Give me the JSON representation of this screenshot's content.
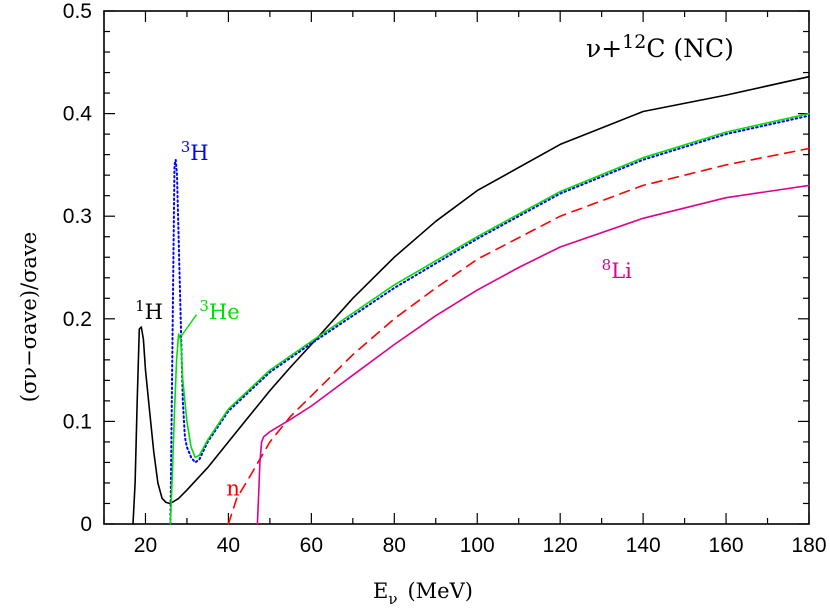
{
  "chart_data": {
    "type": "line",
    "title": "ν+¹²C (NC)",
    "title_parts": {
      "prefix": "ν+",
      "sup": "12",
      "suffix": "C (NC)"
    },
    "xlabel": {
      "main": "E",
      "sub": "ν",
      "unit": "(MeV)"
    },
    "ylabel": {
      "text": "(σν−σave)/σave"
    },
    "xlim": [
      10,
      180
    ],
    "ylim": [
      0,
      0.5
    ],
    "x_ticks": [
      20,
      40,
      60,
      80,
      100,
      120,
      140,
      160,
      180
    ],
    "y_ticks": [
      0,
      0.1,
      0.2,
      0.3,
      0.4,
      0.5
    ],
    "y_tick_labels": [
      "0",
      "0.1",
      "0.2",
      "0.3",
      "0.4",
      "0.5"
    ],
    "grid": false,
    "legend": "none",
    "series": [
      {
        "name": "¹H",
        "label_parts": {
          "sup": "1",
          "base": "H"
        },
        "color": "#000000",
        "style": "solid",
        "x": [
          17,
          17.5,
          18,
          18.5,
          19,
          19.5,
          20,
          21,
          22,
          23,
          24,
          25,
          26,
          28,
          30,
          35,
          40,
          45,
          50,
          55,
          60,
          70,
          80,
          90,
          100,
          120,
          140,
          160,
          180
        ],
        "y": [
          0,
          0.04,
          0.12,
          0.19,
          0.192,
          0.18,
          0.15,
          0.11,
          0.07,
          0.04,
          0.025,
          0.021,
          0.02,
          0.025,
          0.033,
          0.055,
          0.08,
          0.105,
          0.13,
          0.153,
          0.175,
          0.22,
          0.26,
          0.295,
          0.325,
          0.37,
          0.402,
          0.418,
          0.436
        ]
      },
      {
        "name": "³H",
        "label_parts": {
          "sup": "3",
          "base": "H"
        },
        "color": "#0000ff",
        "style": "dotted",
        "x": [
          26,
          26.3,
          26.7,
          27,
          27.3,
          27.6,
          28,
          28.5,
          29,
          29.5,
          30,
          31,
          32,
          33,
          35,
          40,
          50,
          60,
          80,
          100,
          120,
          140,
          160,
          180
        ],
        "y": [
          0,
          0.1,
          0.25,
          0.35,
          0.355,
          0.34,
          0.28,
          0.2,
          0.12,
          0.085,
          0.075,
          0.065,
          0.06,
          0.063,
          0.08,
          0.11,
          0.148,
          0.176,
          0.23,
          0.278,
          0.322,
          0.355,
          0.38,
          0.398
        ]
      },
      {
        "name": "³He",
        "label_parts": {
          "sup": "3",
          "base": "He"
        },
        "color": "#00e000",
        "style": "solid",
        "x": [
          26,
          26.5,
          27,
          27.5,
          28,
          28.5,
          29,
          30,
          31,
          32,
          33,
          35,
          40,
          50,
          60,
          80,
          100,
          120,
          140,
          160,
          180
        ],
        "y": [
          0,
          0.05,
          0.11,
          0.16,
          0.185,
          0.18,
          0.14,
          0.1,
          0.075,
          0.065,
          0.067,
          0.082,
          0.112,
          0.15,
          0.178,
          0.233,
          0.28,
          0.324,
          0.357,
          0.382,
          0.4
        ]
      },
      {
        "name": "n",
        "label_parts": {
          "sup": "",
          "base": "n"
        },
        "color": "#ff0000",
        "style": "dashed",
        "x": [
          40,
          42,
          45,
          50,
          55,
          60,
          70,
          80,
          90,
          100,
          120,
          140,
          160,
          180
        ],
        "y": [
          0,
          0.025,
          0.045,
          0.08,
          0.105,
          0.125,
          0.165,
          0.2,
          0.23,
          0.258,
          0.3,
          0.33,
          0.35,
          0.366
        ]
      },
      {
        "name": "⁸Li",
        "label_parts": {
          "sup": "8",
          "base": "Li"
        },
        "color": "#e00090",
        "style": "solid",
        "x": [
          47,
          47.3,
          47.6,
          48,
          48.5,
          50,
          55,
          60,
          70,
          80,
          90,
          100,
          110,
          120,
          140,
          160,
          180
        ],
        "y": [
          0,
          0.03,
          0.06,
          0.08,
          0.085,
          0.09,
          0.102,
          0.115,
          0.145,
          0.175,
          0.203,
          0.228,
          0.25,
          0.27,
          0.298,
          0.318,
          0.33
        ]
      }
    ],
    "annotations": [
      {
        "series": "¹H",
        "sup": "1",
        "base": "H",
        "x": 17.5,
        "y": 0.2,
        "color": "#000000"
      },
      {
        "series": "³H",
        "sup": "3",
        "base": "H",
        "x": 28.5,
        "y": 0.355,
        "color": "#0000ff"
      },
      {
        "series": "³He",
        "sup": "3",
        "base": "He",
        "x": 33,
        "y": 0.2,
        "color": "#00e000"
      },
      {
        "series": "n",
        "sup": "",
        "base": "n",
        "x": 39.5,
        "y": 0.028,
        "color": "#ff0000"
      },
      {
        "series": "⁸Li",
        "sup": "8",
        "base": "Li",
        "x": 130,
        "y": 0.24,
        "color": "#e00090"
      }
    ]
  }
}
